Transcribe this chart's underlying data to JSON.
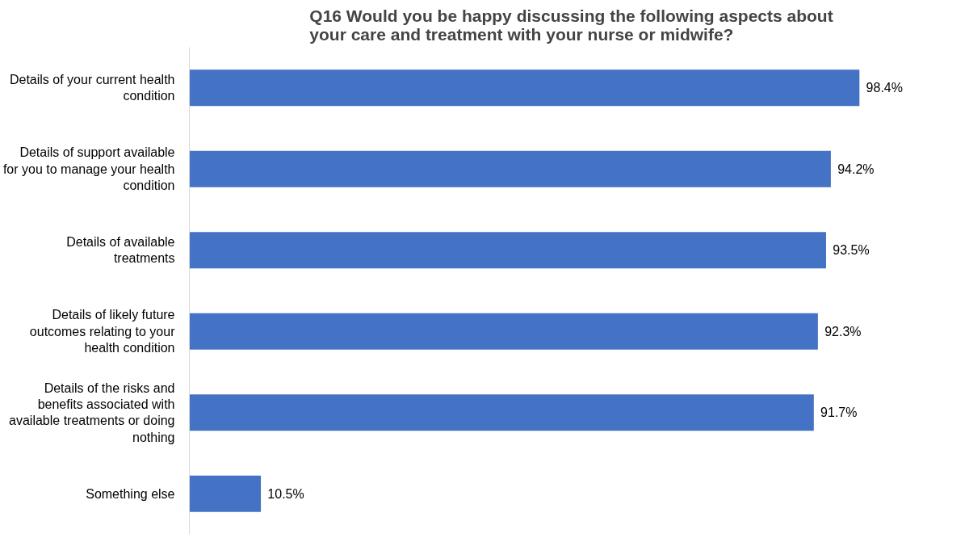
{
  "chart_data": {
    "type": "bar",
    "orientation": "horizontal",
    "title": "Q16 Would you be happy discussing the following aspects about your care and treatment with your nurse or midwife?",
    "categories": [
      "Details of your current health condition",
      "Details of support available for you to manage your health condition",
      "Details of available treatments",
      "Details of likely future outcomes relating to your health condition",
      "Details of the risks and benefits associated with available treatments or doing nothing",
      "Something else"
    ],
    "values": [
      98.4,
      94.2,
      93.5,
      92.3,
      91.7,
      10.5
    ],
    "value_labels": [
      "98.4%",
      "94.2%",
      "93.5%",
      "92.3%",
      "91.7%",
      "10.5%"
    ],
    "color": "#4472c4",
    "grid": false,
    "tick_labels": "y"
  }
}
